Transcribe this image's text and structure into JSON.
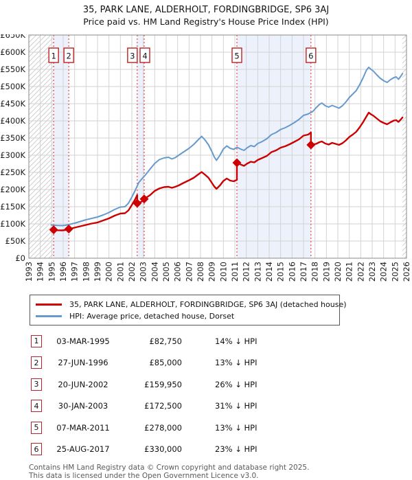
{
  "title": {
    "line1": "35, PARK LANE, ALDERHOLT, FORDINGBRIDGE, SP6 3AJ",
    "line2": "Price paid vs. HM Land Registry's House Price Index (HPI)"
  },
  "legend": {
    "series1_label": "35, PARK LANE, ALDERHOLT, FORDINGBRIDGE, SP6 3AJ (detached house)",
    "series2_label": "HPI: Average price, detached house, Dorset"
  },
  "transactions": [
    {
      "num": "1",
      "date": "03-MAR-1995",
      "price": "£82,750",
      "vs_hpi": "14% ↓ HPI"
    },
    {
      "num": "2",
      "date": "27-JUN-1996",
      "price": "£85,000",
      "vs_hpi": "13% ↓ HPI"
    },
    {
      "num": "3",
      "date": "20-JUN-2002",
      "price": "£159,950",
      "vs_hpi": "26% ↓ HPI"
    },
    {
      "num": "4",
      "date": "30-JAN-2003",
      "price": "£172,500",
      "vs_hpi": "31% ↓ HPI"
    },
    {
      "num": "5",
      "date": "07-MAR-2011",
      "price": "£278,000",
      "vs_hpi": "13% ↓ HPI"
    },
    {
      "num": "6",
      "date": "25-AUG-2017",
      "price": "£330,000",
      "vs_hpi": "23% ↓ HPI"
    }
  ],
  "footer": {
    "line1": "Contains HM Land Registry data © Crown copyright and database right 2025.",
    "line2": "This data is licensed under the Open Government Licence v3.0."
  },
  "chart_data": {
    "type": "line",
    "title": "Price paid vs. HM Land Registry's House Price Index (HPI)",
    "x_axis": {
      "min": 1993,
      "max": 2026,
      "tick_years": [
        1993,
        1994,
        1995,
        1996,
        1997,
        1998,
        1999,
        2000,
        2001,
        2002,
        2003,
        2004,
        2005,
        2006,
        2007,
        2008,
        2009,
        2010,
        2011,
        2012,
        2013,
        2014,
        2015,
        2016,
        2017,
        2018,
        2019,
        2020,
        2021,
        2022,
        2023,
        2024,
        2025,
        2026
      ]
    },
    "y_axis": {
      "min": 0,
      "max": 650000,
      "tick_step": 50000,
      "tick_labels": [
        "£0",
        "£50K",
        "£100K",
        "£150K",
        "£200K",
        "£250K",
        "£300K",
        "£350K",
        "£400K",
        "£450K",
        "£500K",
        "£550K",
        "£600K",
        "£650K"
      ]
    },
    "grid": true,
    "legend_position": "below",
    "series": [
      {
        "name": "35, PARK LANE, ALDERHOLT, FORDINGBRIDGE, SP6 3AJ (detached house)",
        "color": "#cc0000",
        "points": [
          [
            1995.17,
            82750
          ],
          [
            1995.5,
            81500
          ],
          [
            1995.9,
            81000
          ],
          [
            1996.2,
            82000
          ],
          [
            1996.49,
            84000
          ],
          [
            1996.49,
            85000
          ],
          [
            1997.0,
            89000
          ],
          [
            1997.5,
            93000
          ],
          [
            1998.0,
            97000
          ],
          [
            1998.5,
            101000
          ],
          [
            1999.0,
            104000
          ],
          [
            1999.5,
            110000
          ],
          [
            2000.0,
            116000
          ],
          [
            2000.5,
            124000
          ],
          [
            2001.0,
            130000
          ],
          [
            2001.4,
            131000
          ],
          [
            2001.7,
            139000
          ],
          [
            2002.0,
            155000
          ],
          [
            2002.3,
            172000
          ],
          [
            2002.47,
            184000
          ],
          [
            2002.47,
            159950
          ],
          [
            2002.8,
            164000
          ],
          [
            2003.08,
            169000
          ],
          [
            2003.08,
            172500
          ],
          [
            2003.6,
            184000
          ],
          [
            2004.0,
            196000
          ],
          [
            2004.4,
            203000
          ],
          [
            2004.8,
            207000
          ],
          [
            2005.2,
            208000
          ],
          [
            2005.5,
            205000
          ],
          [
            2005.8,
            208000
          ],
          [
            2006.1,
            212000
          ],
          [
            2006.5,
            219000
          ],
          [
            2007.0,
            227000
          ],
          [
            2007.4,
            234000
          ],
          [
            2007.8,
            244000
          ],
          [
            2008.1,
            251000
          ],
          [
            2008.4,
            243000
          ],
          [
            2008.7,
            234000
          ],
          [
            2009.0,
            219000
          ],
          [
            2009.2,
            209000
          ],
          [
            2009.4,
            202000
          ],
          [
            2009.7,
            212000
          ],
          [
            2010.0,
            225000
          ],
          [
            2010.3,
            232000
          ],
          [
            2010.6,
            226000
          ],
          [
            2010.9,
            224000
          ],
          [
            2011.18,
            228000
          ],
          [
            2011.18,
            278000
          ],
          [
            2011.5,
            273000
          ],
          [
            2011.8,
            269000
          ],
          [
            2012.1,
            276000
          ],
          [
            2012.4,
            281000
          ],
          [
            2012.7,
            279000
          ],
          [
            2013.0,
            286000
          ],
          [
            2013.4,
            292000
          ],
          [
            2013.8,
            298000
          ],
          [
            2014.2,
            309000
          ],
          [
            2014.6,
            314000
          ],
          [
            2015.0,
            322000
          ],
          [
            2015.4,
            326000
          ],
          [
            2015.8,
            332000
          ],
          [
            2016.2,
            339000
          ],
          [
            2016.6,
            346000
          ],
          [
            2017.0,
            357000
          ],
          [
            2017.4,
            360000
          ],
          [
            2017.65,
            366000
          ],
          [
            2017.65,
            330000
          ],
          [
            2018.1,
            333000
          ],
          [
            2018.4,
            338000
          ],
          [
            2018.6,
            340000
          ],
          [
            2018.9,
            334000
          ],
          [
            2019.2,
            331000
          ],
          [
            2019.5,
            336000
          ],
          [
            2019.8,
            333000
          ],
          [
            2020.1,
            330000
          ],
          [
            2020.4,
            335000
          ],
          [
            2020.7,
            343000
          ],
          [
            2021.0,
            353000
          ],
          [
            2021.3,
            360000
          ],
          [
            2021.6,
            368000
          ],
          [
            2021.9,
            381000
          ],
          [
            2022.2,
            396000
          ],
          [
            2022.5,
            413000
          ],
          [
            2022.7,
            424000
          ],
          [
            2022.9,
            419000
          ],
          [
            2023.1,
            415000
          ],
          [
            2023.4,
            407000
          ],
          [
            2023.7,
            399000
          ],
          [
            2024.0,
            394000
          ],
          [
            2024.3,
            390000
          ],
          [
            2024.6,
            396000
          ],
          [
            2024.9,
            401000
          ],
          [
            2025.1,
            402000
          ],
          [
            2025.3,
            397000
          ],
          [
            2025.5,
            404000
          ],
          [
            2025.65,
            410000
          ]
        ]
      },
      {
        "name": "HPI: Average price, detached house, Dorset",
        "color": "#6699cc",
        "points": [
          [
            1994.95,
            97000
          ],
          [
            1995.17,
            96000
          ],
          [
            1995.5,
            95500
          ],
          [
            1995.9,
            95000
          ],
          [
            1996.2,
            96000
          ],
          [
            1996.49,
            98000
          ],
          [
            1997.0,
            102000
          ],
          [
            1997.5,
            107000
          ],
          [
            1998.0,
            112000
          ],
          [
            1998.5,
            116000
          ],
          [
            1999.0,
            120000
          ],
          [
            1999.5,
            126000
          ],
          [
            2000.0,
            133000
          ],
          [
            2000.5,
            142000
          ],
          [
            2001.0,
            149000
          ],
          [
            2001.4,
            150000
          ],
          [
            2001.7,
            160000
          ],
          [
            2002.0,
            178000
          ],
          [
            2002.3,
            198000
          ],
          [
            2002.6,
            220000
          ],
          [
            2002.9,
            232000
          ],
          [
            2003.2,
            243000
          ],
          [
            2003.6,
            260000
          ],
          [
            2004.0,
            276000
          ],
          [
            2004.4,
            287000
          ],
          [
            2004.8,
            292000
          ],
          [
            2005.2,
            294000
          ],
          [
            2005.5,
            289000
          ],
          [
            2005.8,
            293000
          ],
          [
            2006.1,
            300000
          ],
          [
            2006.5,
            309000
          ],
          [
            2007.0,
            320000
          ],
          [
            2007.4,
            331000
          ],
          [
            2007.8,
            345000
          ],
          [
            2008.1,
            355000
          ],
          [
            2008.4,
            344000
          ],
          [
            2008.7,
            330000
          ],
          [
            2009.0,
            310000
          ],
          [
            2009.2,
            295000
          ],
          [
            2009.4,
            285000
          ],
          [
            2009.7,
            300000
          ],
          [
            2010.0,
            318000
          ],
          [
            2010.3,
            327000
          ],
          [
            2010.6,
            320000
          ],
          [
            2010.9,
            317000
          ],
          [
            2011.2,
            323000
          ],
          [
            2011.5,
            318000
          ],
          [
            2011.8,
            314000
          ],
          [
            2012.1,
            322000
          ],
          [
            2012.4,
            328000
          ],
          [
            2012.7,
            325000
          ],
          [
            2013.0,
            334000
          ],
          [
            2013.4,
            340000
          ],
          [
            2013.8,
            348000
          ],
          [
            2014.2,
            360000
          ],
          [
            2014.6,
            366000
          ],
          [
            2015.0,
            375000
          ],
          [
            2015.4,
            380000
          ],
          [
            2015.8,
            387000
          ],
          [
            2016.2,
            395000
          ],
          [
            2016.6,
            404000
          ],
          [
            2017.0,
            416000
          ],
          [
            2017.4,
            420000
          ],
          [
            2017.8,
            427000
          ],
          [
            2018.1,
            438000
          ],
          [
            2018.4,
            448000
          ],
          [
            2018.6,
            452000
          ],
          [
            2018.9,
            444000
          ],
          [
            2019.2,
            440000
          ],
          [
            2019.5,
            445000
          ],
          [
            2019.8,
            441000
          ],
          [
            2020.1,
            437000
          ],
          [
            2020.4,
            444000
          ],
          [
            2020.7,
            455000
          ],
          [
            2021.0,
            468000
          ],
          [
            2021.3,
            478000
          ],
          [
            2021.6,
            488000
          ],
          [
            2021.9,
            505000
          ],
          [
            2022.2,
            525000
          ],
          [
            2022.5,
            548000
          ],
          [
            2022.7,
            556000
          ],
          [
            2022.9,
            550000
          ],
          [
            2023.1,
            545000
          ],
          [
            2023.4,
            534000
          ],
          [
            2023.7,
            524000
          ],
          [
            2024.0,
            517000
          ],
          [
            2024.3,
            512000
          ],
          [
            2024.6,
            520000
          ],
          [
            2024.9,
            526000
          ],
          [
            2025.1,
            528000
          ],
          [
            2025.3,
            521000
          ],
          [
            2025.5,
            530000
          ],
          [
            2025.65,
            538000
          ]
        ]
      }
    ],
    "sale_markers": [
      {
        "num": "1",
        "year": 1995.17,
        "price": 82750
      },
      {
        "num": "2",
        "year": 1996.49,
        "price": 85000
      },
      {
        "num": "3",
        "year": 2002.47,
        "price": 159950
      },
      {
        "num": "4",
        "year": 2003.08,
        "price": 172500
      },
      {
        "num": "5",
        "year": 2011.18,
        "price": 278000
      },
      {
        "num": "6",
        "year": 2017.65,
        "price": 330000
      }
    ],
    "shaded_bands": [
      [
        1995.17,
        1996.49
      ],
      [
        2002.47,
        2003.08
      ],
      [
        2011.18,
        2017.65
      ]
    ],
    "hatched_regions": [
      [
        1993.0,
        1995.17
      ],
      [
        2025.65,
        2026.0
      ]
    ],
    "colors": {
      "property_line": "#cc0000",
      "hpi_line": "#6699cc",
      "sale_vline": "#ee4444",
      "marker_box_border": "#bb2222",
      "band_fill": "#edf1fb",
      "grid": "#d2d2d2",
      "plot_border": "#8a8a8a",
      "hatch": "#c9c9c9",
      "tick_text": "#1a1a1a"
    }
  }
}
